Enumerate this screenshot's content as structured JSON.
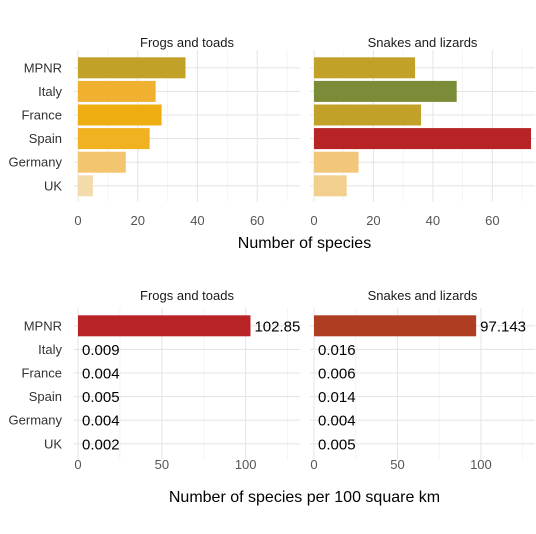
{
  "chart_data": [
    {
      "type": "bar",
      "orientation": "horizontal",
      "xlabel": "Number of species",
      "categories": [
        "MPNR",
        "Italy",
        "France",
        "Spain",
        "Germany",
        "UK"
      ],
      "xlim": [
        0,
        73
      ],
      "xticks": [
        0,
        20,
        40,
        60
      ],
      "grid": true,
      "legend": "none",
      "show_value_labels": false,
      "panels": [
        {
          "title": "Frogs and toads",
          "values": [
            36,
            26,
            28,
            24,
            16,
            5
          ],
          "colors": [
            "#c1a128",
            "#f0b030",
            "#eeae12",
            "#f1b221",
            "#f4c56f",
            "#f3dbac"
          ]
        },
        {
          "title": "Snakes and lizards",
          "values": [
            34,
            48,
            36,
            73,
            15,
            11
          ],
          "colors": [
            "#c1a128",
            "#7a8c38",
            "#c1a128",
            "#b82326",
            "#f3c77a",
            "#f3cf8e"
          ]
        }
      ]
    },
    {
      "type": "bar",
      "orientation": "horizontal",
      "xlabel": "Number of species per 100 square km",
      "categories": [
        "MPNR",
        "Italy",
        "France",
        "Spain",
        "Germany",
        "UK"
      ],
      "xlim": [
        0,
        130
      ],
      "xticks": [
        0,
        50,
        100
      ],
      "grid": true,
      "legend": "none",
      "show_value_labels": true,
      "panels": [
        {
          "title": "Frogs and toads",
          "values": [
            102.857,
            0.009,
            0.004,
            0.005,
            0.004,
            0.002
          ],
          "labels": [
            "102.857",
            "0.009",
            "0.004",
            "0.005",
            "0.004",
            "0.002"
          ],
          "colors": [
            "#b82326",
            "#fdeee0",
            "#fdeee0",
            "#fdeee0",
            "#fdeee0",
            "#fdeee0"
          ]
        },
        {
          "title": "Snakes and lizards",
          "values": [
            97.143,
            0.016,
            0.006,
            0.014,
            0.004,
            0.005
          ],
          "labels": [
            "97.143",
            "0.016",
            "0.006",
            "0.014",
            "0.004",
            "0.005"
          ],
          "colors": [
            "#ae3d21",
            "#fdeee0",
            "#fdeee0",
            "#fdeee0",
            "#fdeee0",
            "#fdeee0"
          ]
        }
      ]
    }
  ]
}
